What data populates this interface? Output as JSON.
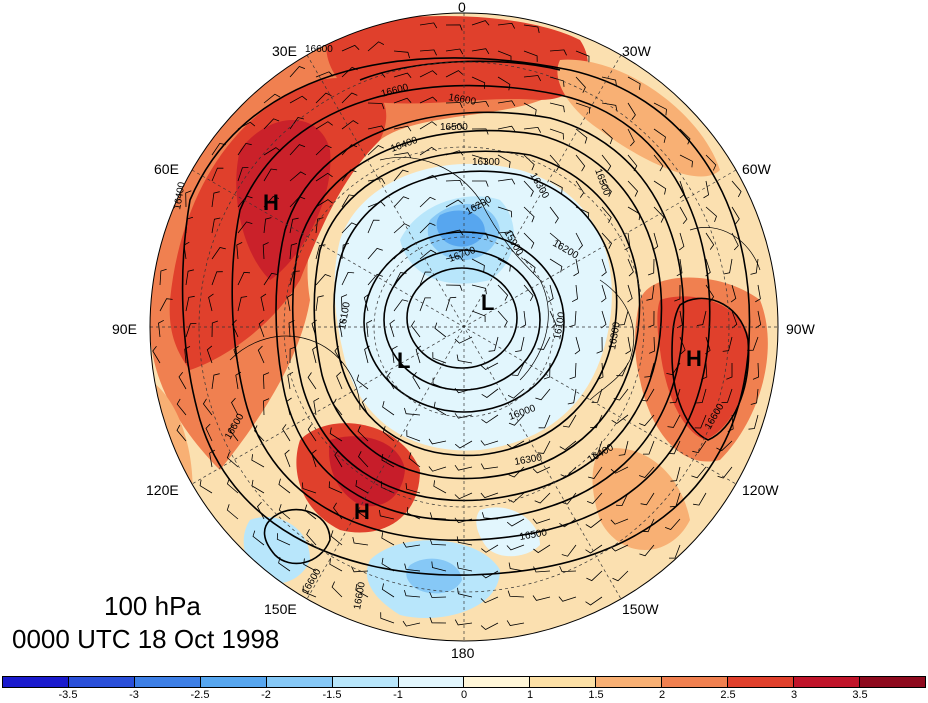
{
  "plot": {
    "level": "100 hPa",
    "time": "0000 UTC 18 Oct 1998",
    "longitude_labels": [
      "0",
      "30W",
      "60W",
      "90W",
      "120W",
      "150W",
      "180",
      "150E",
      "120E",
      "90E",
      "60E",
      "30E"
    ],
    "pressure_centers": [
      "H",
      "H",
      "H",
      "L",
      "L"
    ],
    "contour_labels": [
      "16600",
      "16600",
      "16600",
      "16500",
      "16400",
      "16300",
      "16200",
      "16100",
      "16000",
      "15900",
      "16700",
      "16300",
      "16400",
      "16500",
      "16600",
      "16200",
      "16300",
      "16100",
      "16400",
      "16600",
      "16300",
      "16500",
      "16600",
      "16600"
    ],
    "colorbar": {
      "tick_labels": [
        "-3.5",
        "-3",
        "-2.5",
        "-2",
        "-1.5",
        "-1",
        "0",
        "1",
        "1.5",
        "2",
        "2.5",
        "3",
        "3.5"
      ],
      "colors": [
        "#1a1acd",
        "#2a4fd9",
        "#3d7fe6",
        "#57a6ef",
        "#86c8f6",
        "#b8e6fb",
        "#e2f6fd",
        "#fff6d8",
        "#fce0a6",
        "#f8b074",
        "#f08050",
        "#e0402c",
        "#c0142a",
        "#8e0a1e"
      ]
    }
  }
}
